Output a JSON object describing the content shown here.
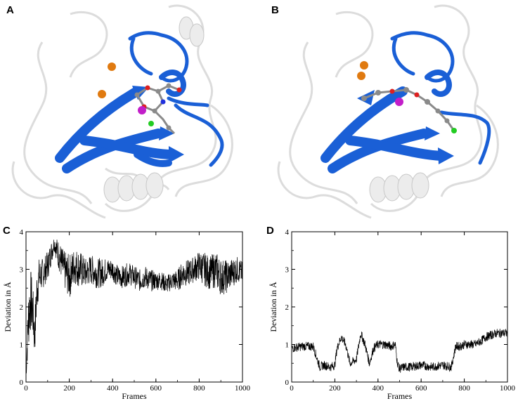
{
  "panels": {
    "A": "A",
    "B": "B",
    "C": "C",
    "D": "D"
  },
  "colors": {
    "ribbon": "#1a5fd6",
    "ribbon_dark": "#0b3a99",
    "protein_ghost": "#d4d4d4",
    "ion": "#e07a10",
    "magenta_atom": "#c21ec9",
    "chlorine": "#22cc22",
    "oxygen": "#dd2020",
    "nitrogen": "#2030dd",
    "carbon": "#8a8a8a",
    "trace": "#000000"
  },
  "chart_data": [
    {
      "panel": "C",
      "type": "line",
      "xlabel": "Frames",
      "ylabel": "Deviation in Å",
      "xlim": [
        0,
        1000
      ],
      "ylim": [
        0,
        4
      ],
      "xticks": [
        0,
        200,
        400,
        600,
        800,
        1000
      ],
      "yticks": [
        0,
        1,
        2,
        3,
        4
      ],
      "grid": false,
      "series": [
        {
          "x": [
            0,
            10,
            20,
            30,
            40,
            50,
            60,
            80,
            100,
            120,
            130,
            150,
            175,
            200,
            225,
            250,
            275,
            300,
            325,
            350,
            375,
            400,
            425,
            450,
            475,
            500,
            525,
            550,
            575,
            600,
            625,
            650,
            675,
            700,
            725,
            750,
            775,
            800,
            825,
            850,
            875,
            900,
            925,
            950,
            975,
            1000
          ],
          "y": [
            0.2,
            1.6,
            2.2,
            2.0,
            1.2,
            2.4,
            2.8,
            2.9,
            3.1,
            3.5,
            3.7,
            3.4,
            3.0,
            2.8,
            3.1,
            3.0,
            2.9,
            3.0,
            2.9,
            2.9,
            3.0,
            3.0,
            2.8,
            2.8,
            2.9,
            2.8,
            2.7,
            2.8,
            2.7,
            2.7,
            2.7,
            2.6,
            2.7,
            2.7,
            2.9,
            2.9,
            3.0,
            3.1,
            3.0,
            2.9,
            3.0,
            2.8,
            2.8,
            2.9,
            3.0,
            2.9
          ],
          "noise": [
            0.2,
            0.8,
            0.9,
            0.7,
            0.6,
            0.6,
            0.5,
            0.4,
            0.4,
            0.3,
            0.2,
            0.4,
            0.5,
            0.6,
            0.5,
            0.5,
            0.4,
            0.4,
            0.4,
            0.4,
            0.3,
            0.3,
            0.3,
            0.3,
            0.3,
            0.3,
            0.3,
            0.3,
            0.3,
            0.25,
            0.25,
            0.25,
            0.25,
            0.3,
            0.35,
            0.35,
            0.35,
            0.4,
            0.45,
            0.45,
            0.5,
            0.5,
            0.45,
            0.4,
            0.35,
            0.3
          ]
        }
      ]
    },
    {
      "panel": "D",
      "type": "line",
      "xlabel": "Frames",
      "ylabel": "Deviation in Å",
      "xlim": [
        0,
        1000
      ],
      "ylim": [
        0,
        4
      ],
      "xticks": [
        0,
        200,
        400,
        600,
        800,
        1000
      ],
      "yticks": [
        0,
        1,
        2,
        3,
        4
      ],
      "grid": false,
      "series": [
        {
          "x": [
            0,
            50,
            100,
            130,
            150,
            180,
            200,
            210,
            230,
            250,
            270,
            300,
            320,
            340,
            360,
            380,
            400,
            430,
            460,
            480,
            490,
            500,
            520,
            550,
            600,
            650,
            700,
            740,
            760,
            780,
            800,
            850,
            880,
            900,
            950,
            1000
          ],
          "y": [
            0.9,
            0.95,
            0.95,
            0.4,
            0.45,
            0.4,
            0.45,
            0.9,
            1.2,
            1.0,
            0.5,
            0.6,
            1.3,
            1.0,
            0.5,
            0.9,
            1.0,
            1.0,
            0.95,
            1.0,
            0.5,
            0.35,
            0.4,
            0.4,
            0.45,
            0.4,
            0.45,
            0.4,
            0.95,
            0.95,
            1.0,
            1.0,
            1.1,
            1.2,
            1.3,
            1.3
          ]
        }
      ]
    }
  ]
}
